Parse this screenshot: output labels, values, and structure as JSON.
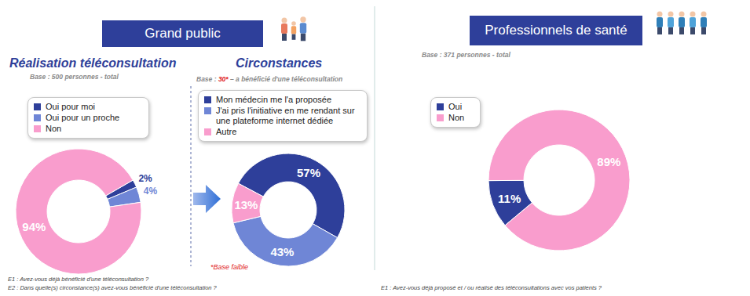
{
  "chart_data": [
    {
      "type": "donut",
      "title": "Réalisation téléconsultation",
      "subtitle": "Base : 500 personnes - total",
      "categories": [
        "Oui pour moi",
        "Oui pour un proche",
        "Non"
      ],
      "values": [
        2,
        4,
        94
      ],
      "value_labels": [
        "2%",
        "4%",
        "94%"
      ],
      "colors": [
        "#2e3f9a",
        "#6f86d6",
        "#f99dcd"
      ],
      "legend": "top",
      "data_labels": true
    },
    {
      "type": "donut",
      "title": "Circonstances",
      "subtitle": "Base : 30* – a bénéficié d'une téléconsultation",
      "categories": [
        "Mon médecin me l'a proposée",
        "J'ai pris l'initiative en me rendant sur une plateforme internet dédiée",
        "Autre"
      ],
      "values": [
        57,
        43,
        13
      ],
      "value_labels": [
        "57%",
        "43%",
        "13%"
      ],
      "colors": [
        "#2e3f9a",
        "#6f86d6",
        "#f99dcd"
      ],
      "legend": "top",
      "data_labels": true,
      "annotation": "*Base faible"
    },
    {
      "type": "donut",
      "subtitle": "Base : 371 personnes - total",
      "categories": [
        "Oui",
        "Non"
      ],
      "values": [
        11,
        89
      ],
      "value_labels": [
        "11%",
        "89%"
      ],
      "colors": [
        "#2e3f9a",
        "#f99dcd"
      ],
      "legend": "top",
      "data_labels": true
    }
  ],
  "panels": [
    {
      "title": "Grand public",
      "notes": [
        "E1 : Avez-vous déjà bénéficié d'une téléconsultation ?",
        "E2 : Dans quelle(s) circonstance(s) avez-vous bénéficié d'une téléconsultation ?"
      ]
    },
    {
      "title": "Professionnels de santé",
      "notes": [
        "E1 : Avez-vous déjà proposé et / ou réalisé des téléconsultations avec vos patients ?"
      ]
    }
  ]
}
